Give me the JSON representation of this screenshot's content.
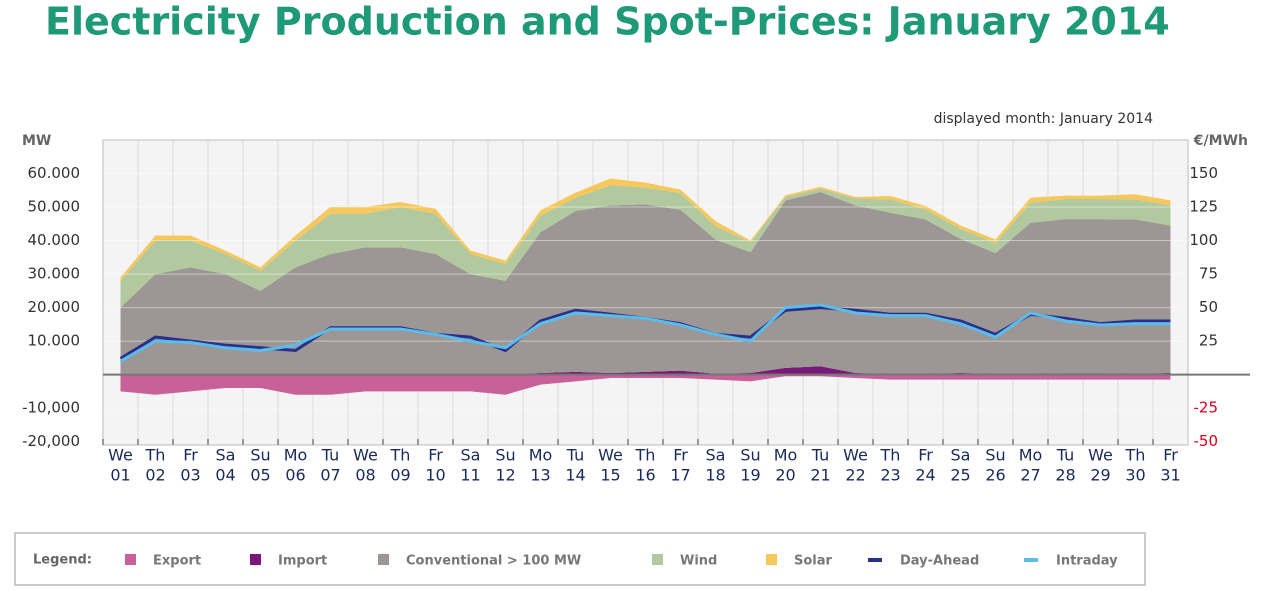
{
  "chart_data": {
    "type": "stacked-area-line",
    "title": "Electricity Production and Spot-Prices: January 2014",
    "subtitle": "displayed month: January 2014",
    "y_label": "MW",
    "y2_label": "€/MWh",
    "legend_title": "Legend:",
    "categories": [
      "01",
      "02",
      "03",
      "04",
      "05",
      "06",
      "07",
      "08",
      "09",
      "10",
      "11",
      "12",
      "13",
      "14",
      "15",
      "16",
      "17",
      "18",
      "19",
      "20",
      "21",
      "22",
      "23",
      "24",
      "25",
      "26",
      "27",
      "28",
      "29",
      "30",
      "31"
    ],
    "weekdays": [
      "We",
      "Th",
      "Fr",
      "Sa",
      "Su",
      "Mo",
      "Tu",
      "We",
      "Th",
      "Fr",
      "Sa",
      "Su",
      "Mo",
      "Tu",
      "We",
      "Th",
      "Fr",
      "Sa",
      "Su",
      "Mo",
      "Tu",
      "We",
      "Th",
      "Fr",
      "Sa",
      "Su",
      "Mo",
      "Tu",
      "We",
      "Th",
      "Fr"
    ],
    "ylim": [
      -21000,
      70000
    ],
    "yticks": [
      {
        "value": -20000,
        "label": "-20,000"
      },
      {
        "value": -10000,
        "label": "-10,000"
      },
      {
        "value": 10000,
        "label": "10.000"
      },
      {
        "value": 20000,
        "label": "20.000"
      },
      {
        "value": 30000,
        "label": "30.000"
      },
      {
        "value": 40000,
        "label": "40.000"
      },
      {
        "value": 50000,
        "label": "50.000"
      },
      {
        "value": 60000,
        "label": "60.000"
      }
    ],
    "y2lim": [
      -52.5,
      175
    ],
    "y2ticks": [
      -50,
      -25,
      25,
      50,
      75,
      100,
      125,
      150
    ],
    "y2_negative_color": "#d0021b",
    "grid": true,
    "series": [
      {
        "name": "Export",
        "color": "#c8609a",
        "values": [
          -5000,
          -6000,
          -5000,
          -4000,
          -4000,
          -6000,
          -6000,
          -5000,
          -5000,
          -5000,
          -5000,
          -6000,
          -3000,
          -2000,
          -1000,
          -1000,
          -1000,
          -1500,
          -2000,
          -500,
          -500,
          -1000,
          -1500,
          -1500,
          -1500,
          -1500,
          -1500,
          -1500,
          -1500,
          -1500,
          -1500
        ]
      },
      {
        "name": "Import",
        "color": "#7a1a78",
        "values": [
          0,
          0,
          0,
          0,
          0,
          0,
          0,
          0,
          0,
          0,
          0,
          0,
          500,
          800,
          500,
          800,
          1200,
          300,
          500,
          2000,
          2500,
          500,
          300,
          300,
          500,
          300,
          300,
          400,
          400,
          300,
          500
        ]
      },
      {
        "name": "Conventional > 100 MW",
        "color": "#9c9794",
        "values": [
          20000,
          30000,
          32000,
          30000,
          25000,
          32000,
          36000,
          38000,
          38000,
          36000,
          30000,
          28000,
          42000,
          48000,
          50000,
          50000,
          48000,
          40000,
          36000,
          50000,
          52000,
          50000,
          48000,
          46000,
          40000,
          36000,
          45000,
          46000,
          46000,
          46000,
          44000
        ]
      },
      {
        "name": "Wind",
        "color": "#b2c9a0",
        "values": [
          8000,
          10000,
          8000,
          6000,
          6000,
          8000,
          12000,
          10000,
          12000,
          12000,
          6000,
          5000,
          5000,
          4000,
          6000,
          5000,
          5000,
          4000,
          3000,
          1000,
          1000,
          2000,
          4000,
          3000,
          3000,
          3000,
          6000,
          6000,
          6000,
          6000,
          6000
        ]
      },
      {
        "name": "Solar",
        "color": "#f6c75a",
        "values": [
          1000,
          1500,
          1500,
          1000,
          1000,
          1500,
          2000,
          2000,
          1500,
          1500,
          1000,
          1000,
          1500,
          1500,
          2000,
          1500,
          1000,
          1500,
          500,
          500,
          500,
          500,
          1000,
          1000,
          1000,
          1000,
          1500,
          1000,
          1000,
          1500,
          1500
        ]
      },
      {
        "name": "Day-Ahead",
        "color": "#2a2f8c",
        "axis": "y2",
        "values": [
          12,
          28,
          25,
          22,
          20,
          18,
          35,
          35,
          35,
          30,
          28,
          18,
          40,
          48,
          45,
          42,
          38,
          30,
          28,
          48,
          50,
          48,
          45,
          45,
          40,
          30,
          45,
          42,
          38,
          40,
          40
        ]
      },
      {
        "name": "Intraday",
        "color": "#5bbcea",
        "axis": "y2",
        "values": [
          10,
          25,
          24,
          20,
          18,
          22,
          34,
          34,
          34,
          30,
          25,
          20,
          38,
          46,
          44,
          42,
          37,
          30,
          25,
          50,
          52,
          46,
          44,
          44,
          38,
          28,
          46,
          40,
          37,
          38,
          38
        ]
      }
    ]
  }
}
